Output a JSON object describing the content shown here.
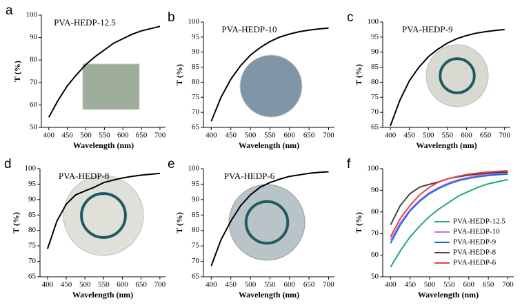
{
  "chart_data": [
    {
      "type": "line",
      "panel_label": "a",
      "title": "PVA-HEDP-12.5",
      "x_label": "Wavelength (nm)",
      "y_label": "T (%)",
      "x": [
        400,
        425,
        450,
        475,
        500,
        525,
        550,
        575,
        600,
        625,
        650,
        675,
        700
      ],
      "values": [
        54.5,
        62,
        68.5,
        73.5,
        78,
        81.5,
        84.5,
        87.5,
        89.5,
        91.5,
        93,
        94,
        95
      ],
      "color": "#000000",
      "xlim": [
        380,
        715
      ],
      "ylim": [
        50,
        100
      ],
      "xticks": [
        400,
        450,
        500,
        550,
        600,
        650,
        700
      ],
      "yticks": [
        50,
        60,
        70,
        80,
        90,
        100
      ]
    },
    {
      "type": "line",
      "panel_label": "b",
      "title": "PVA-HEDP-10",
      "x_label": "Wavelength (nm)",
      "y_label": "T (%)",
      "x": [
        400,
        425,
        450,
        475,
        500,
        525,
        550,
        575,
        600,
        625,
        650,
        675,
        700
      ],
      "values": [
        67,
        75,
        81,
        85.5,
        89,
        91.5,
        93.5,
        95,
        96,
        96.8,
        97.3,
        97.7,
        98
      ],
      "color": "#000000",
      "xlim": [
        380,
        715
      ],
      "ylim": [
        65,
        100
      ],
      "xticks": [
        400,
        450,
        500,
        550,
        600,
        650,
        700
      ],
      "yticks": [
        65,
        70,
        75,
        80,
        85,
        90,
        95,
        100
      ]
    },
    {
      "type": "line",
      "panel_label": "c",
      "title": "PVA-HEDP-9",
      "x_label": "Wavelength (nm)",
      "y_label": "T (%)",
      "x": [
        400,
        425,
        450,
        475,
        500,
        525,
        550,
        575,
        600,
        625,
        650,
        675,
        700
      ],
      "values": [
        65.5,
        74,
        80.5,
        85,
        88.5,
        91,
        93,
        94.5,
        95.5,
        96.3,
        96.8,
        97.2,
        97.5
      ],
      "color": "#000000",
      "xlim": [
        380,
        715
      ],
      "ylim": [
        65,
        100
      ],
      "xticks": [
        400,
        450,
        500,
        550,
        600,
        650,
        700
      ],
      "yticks": [
        65,
        70,
        75,
        80,
        85,
        90,
        95,
        100
      ]
    },
    {
      "type": "line",
      "panel_label": "d",
      "title": "PVA-HEDP-8",
      "x_label": "Wavelength (nm)",
      "y_label": "T (%)",
      "x": [
        400,
        425,
        450,
        475,
        500,
        525,
        550,
        575,
        600,
        625,
        650,
        675,
        700
      ],
      "values": [
        74,
        83,
        88.5,
        91.5,
        92.8,
        94,
        95.5,
        96.3,
        97,
        97.5,
        97.9,
        98.2,
        98.5
      ],
      "color": "#000000",
      "xlim": [
        380,
        715
      ],
      "ylim": [
        65,
        100
      ],
      "xticks": [
        400,
        450,
        500,
        550,
        600,
        650,
        700
      ],
      "yticks": [
        65,
        70,
        75,
        80,
        85,
        90,
        95,
        100
      ]
    },
    {
      "type": "line",
      "panel_label": "e",
      "title": "PVA-HEDP-6",
      "x_label": "Wavelength (nm)",
      "y_label": "T (%)",
      "x": [
        400,
        425,
        450,
        475,
        500,
        525,
        550,
        575,
        600,
        625,
        650,
        675,
        700
      ],
      "values": [
        68.5,
        77,
        83,
        88,
        91.5,
        94,
        95.5,
        96.6,
        97.5,
        98,
        98.5,
        98.8,
        99
      ],
      "color": "#000000",
      "xlim": [
        380,
        715
      ],
      "ylim": [
        65,
        100
      ],
      "xticks": [
        400,
        450,
        500,
        550,
        600,
        650,
        700
      ],
      "yticks": [
        65,
        70,
        75,
        80,
        85,
        90,
        95,
        100
      ]
    },
    {
      "type": "line",
      "panel_label": "f",
      "x_label": "Wavelength (nm)",
      "y_label": "T (%)",
      "x": [
        400,
        425,
        450,
        475,
        500,
        525,
        550,
        575,
        600,
        625,
        650,
        675,
        700
      ],
      "series": [
        {
          "name": "PVA-HEDP-12.5",
          "color": "#1aa97a",
          "values": [
            54.5,
            62,
            68.5,
            73.5,
            78,
            81.5,
            84.5,
            87.5,
            89.5,
            91.5,
            93,
            94,
            95
          ]
        },
        {
          "name": "PVA-HEDP-10",
          "color": "#c070f0",
          "values": [
            67,
            75,
            81,
            85.5,
            89,
            91.5,
            93.5,
            95,
            96,
            96.8,
            97.3,
            97.7,
            98
          ]
        },
        {
          "name": "PVA-HEDP-9",
          "color": "#1a6fd6",
          "values": [
            65.5,
            74,
            80.5,
            85,
            88.5,
            91,
            93,
            94.5,
            95.5,
            96.3,
            96.8,
            97.2,
            97.5
          ]
        },
        {
          "name": "PVA-HEDP-8",
          "color": "#444444",
          "values": [
            74,
            83,
            88.5,
            91.5,
            92.8,
            94,
            95.5,
            96.3,
            97,
            97.5,
            97.9,
            98.2,
            98.5
          ]
        },
        {
          "name": "PVA-HEDP-6",
          "color": "#e8413a",
          "values": [
            68.5,
            77,
            83,
            88,
            91.5,
            94,
            95.5,
            96.6,
            97.5,
            98,
            98.5,
            98.8,
            99
          ]
        }
      ],
      "legend": "lower right",
      "xlim": [
        380,
        715
      ],
      "ylim": [
        50,
        100
      ],
      "xticks": [
        400,
        450,
        500,
        550,
        600,
        650,
        700
      ],
      "yticks": [
        50,
        60,
        70,
        80,
        90,
        100
      ]
    }
  ]
}
